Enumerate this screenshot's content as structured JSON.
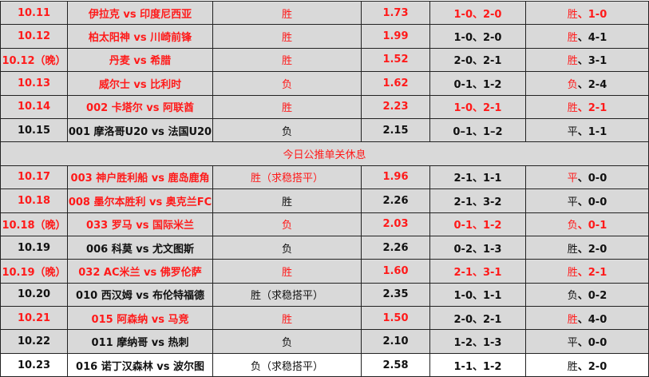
{
  "colors": {
    "red": "#ff1a1a",
    "black": "#111111",
    "row_bg": "#d9d9d9",
    "last_row_bg": "#ffffff"
  },
  "separator": {
    "text": "今日公推单关休息",
    "color": "red"
  },
  "rows": [
    {
      "date": "10.11",
      "match": "伊拉克 vs 印度尼西亚",
      "pick": "胜",
      "odds": "1.73",
      "scores": "1-0、2-0",
      "outcome": "胜",
      "result_score": "、1-0",
      "c": [
        "r",
        "r",
        "r",
        "r",
        "r",
        "r",
        "r"
      ]
    },
    {
      "date": "10.12",
      "match": "柏太阳神 vs 川崎前锋",
      "pick": "胜",
      "odds": "1.99",
      "scores": "1-0、2-0",
      "outcome": "胜",
      "result_score": "、4-1",
      "c": [
        "r",
        "r",
        "r",
        "r",
        "k",
        "r",
        "k"
      ]
    },
    {
      "date": "10.12（晚）",
      "match": "丹麦 vs 希腊",
      "pick": "胜",
      "odds": "1.52",
      "scores": "2-0、2-1",
      "outcome": "胜",
      "result_score": "、3-1",
      "c": [
        "r",
        "r",
        "r",
        "r",
        "k",
        "r",
        "k"
      ]
    },
    {
      "date": "10.13",
      "match": "威尔士 vs 比利时",
      "pick": "负",
      "odds": "1.62",
      "scores": "0-1、1-2",
      "outcome": "负",
      "result_score": "、2-4",
      "c": [
        "r",
        "r",
        "r",
        "r",
        "k",
        "r",
        "k"
      ]
    },
    {
      "date": "10.14",
      "match": "002 卡塔尔 vs 阿联酋",
      "pick": "胜",
      "odds": "2.23",
      "scores": "1-0、2-1",
      "outcome": "胜",
      "result_score": "、2-1",
      "c": [
        "r",
        "r",
        "r",
        "r",
        "r",
        "r",
        "r"
      ]
    },
    {
      "date": "10.15",
      "match": "001 摩洛哥U20 vs 法国U20",
      "pick": "负",
      "odds": "2.15",
      "scores": "0–1、1–2",
      "outcome": "平",
      "result_score": "、1-1",
      "c": [
        "k",
        "k",
        "k",
        "k",
        "k",
        "k",
        "k"
      ]
    },
    {
      "separator": true
    },
    {
      "date": "10.17",
      "match": "003 神户胜利船 vs 鹿岛鹿角",
      "pick": "胜（求稳搭平）",
      "odds": "1.96",
      "scores": "2-1、1-1",
      "outcome": "平",
      "result_score": "、0-0",
      "c": [
        "r",
        "r",
        "r",
        "r",
        "k",
        "r",
        "k"
      ]
    },
    {
      "date": "10.18",
      "match": "008 墨尔本胜利 vs 奥克兰FC",
      "pick": "胜",
      "odds": "2.26",
      "scores": "2-1、3-2",
      "outcome": "平",
      "result_score": "、0-0",
      "c": [
        "r",
        "r",
        "k",
        "k",
        "k",
        "k",
        "k"
      ]
    },
    {
      "date": "10.18（晚）",
      "match": "033 罗马 vs 国际米兰",
      "pick": "负",
      "odds": "2.03",
      "scores": "0-1、1-2",
      "outcome": "负",
      "result_score": "、0-1",
      "c": [
        "r",
        "r",
        "r",
        "r",
        "r",
        "r",
        "r"
      ]
    },
    {
      "date": "10.19",
      "match": "006 科莫 vs 尤文图斯",
      "pick": "负",
      "odds": "2.26",
      "scores": "0-2、1-3",
      "outcome": "胜",
      "result_score": "、2-0",
      "c": [
        "k",
        "k",
        "k",
        "k",
        "k",
        "k",
        "k"
      ]
    },
    {
      "date": "10.19（晚）",
      "match": "032 AC米兰 vs 佛罗伦萨",
      "pick": "胜",
      "odds": "1.60",
      "scores": "2-1、3-1",
      "outcome": "胜",
      "result_score": "、2-1",
      "c": [
        "r",
        "r",
        "r",
        "r",
        "r",
        "r",
        "r"
      ]
    },
    {
      "date": "10.20",
      "match": "010 西汉姆 vs 布伦特福德",
      "pick": "胜（求稳搭平）",
      "odds": "2.35",
      "scores": "1-0、1-1",
      "outcome": "负",
      "result_score": "、0-2",
      "c": [
        "k",
        "k",
        "k",
        "k",
        "k",
        "k",
        "k"
      ]
    },
    {
      "date": "10.21",
      "match": "015 阿森纳 vs 马竞",
      "pick": "胜",
      "odds": "1.50",
      "scores": "2-0、2-1",
      "outcome": "胜",
      "result_score": "、4-0",
      "c": [
        "r",
        "r",
        "r",
        "r",
        "k",
        "r",
        "k"
      ]
    },
    {
      "date": "10.22",
      "match": "011 摩纳哥 vs 热刺",
      "pick": "负",
      "odds": "2.10",
      "scores": "1-2、1-3",
      "outcome": "平",
      "result_score": "、0-0",
      "c": [
        "k",
        "k",
        "k",
        "k",
        "k",
        "k",
        "k"
      ]
    },
    {
      "date": "10.23",
      "match": "016 诺丁汉森林 vs 波尔图",
      "pick": "负（求稳搭平）",
      "odds": "2.58",
      "scores": "1-1、1-2",
      "outcome": "胜",
      "result_score": "、2-0",
      "c": [
        "k",
        "k",
        "k",
        "k",
        "k",
        "k",
        "k"
      ],
      "white": true
    }
  ]
}
